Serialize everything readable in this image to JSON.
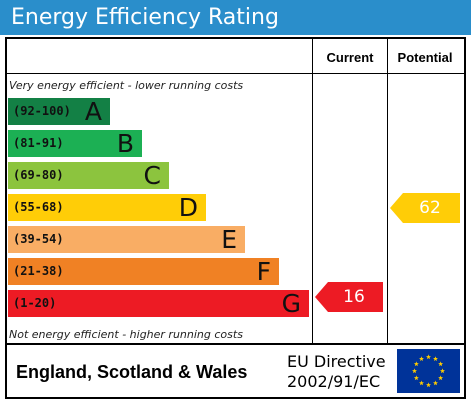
{
  "title": "Energy Efficiency Rating",
  "columns": {
    "current": "Current",
    "potential": "Potential"
  },
  "top_note": "Very energy efficient - lower running costs",
  "bottom_note": "Not energy efficient - higher running costs",
  "bands": [
    {
      "range": "(92-100)",
      "letter": "A",
      "color": "#138045"
    },
    {
      "range": "(81-91)",
      "letter": "B",
      "color": "#1cb054"
    },
    {
      "range": "(69-80)",
      "letter": "C",
      "color": "#8cc43e"
    },
    {
      "range": "(55-68)",
      "letter": "D",
      "color": "#ffcd07"
    },
    {
      "range": "(39-54)",
      "letter": "E",
      "color": "#f9ad64"
    },
    {
      "range": "(21-38)",
      "letter": "F",
      "color": "#f08124"
    },
    {
      "range": "(1-20)",
      "letter": "G",
      "color": "#ed1b24"
    }
  ],
  "current_rating": {
    "value": "16",
    "band": "G",
    "color": "#ed1b24"
  },
  "potential_rating": {
    "value": "62",
    "band": "D",
    "color": "#ffcd07"
  },
  "footer": {
    "country": "England, Scotland & Wales",
    "directive_line1": "EU Directive",
    "directive_line2": "2002/91/EC",
    "flag_colors": {
      "background": "#003399",
      "stars": "#ffcc00"
    }
  }
}
